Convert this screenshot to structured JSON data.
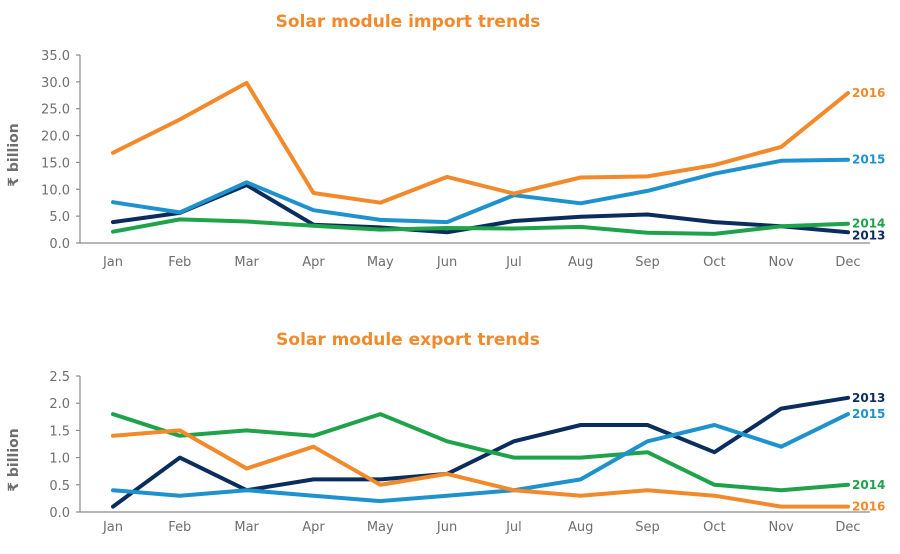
{
  "colors": {
    "c2013": "#0b2d5e",
    "c2014": "#1fa34a",
    "c2015": "#1e92cc",
    "c2016": "#f28a2c",
    "title": "#f28a2c",
    "axis": "#8a8a8a",
    "tick_text": "#6f6f6f"
  },
  "chart_data": [
    {
      "type": "line",
      "title": "Solar module import trends",
      "xlabel": "",
      "ylabel": "₹ billion",
      "ylim": [
        0,
        35
      ],
      "yticks": [
        "0.0",
        "5.0",
        "10.0",
        "15.0",
        "20.0",
        "25.0",
        "30.0",
        "35.0"
      ],
      "categories": [
        "Jan",
        "Feb",
        "Mar",
        "Apr",
        "May",
        "Jun",
        "Jul",
        "Aug",
        "Sep",
        "Oct",
        "Nov",
        "Dec"
      ],
      "series": [
        {
          "name": "2013",
          "color_key": "c2013",
          "values": [
            3.9,
            5.6,
            10.8,
            3.4,
            2.9,
            2.0,
            4.1,
            4.9,
            5.3,
            3.9,
            3.1,
            2.0
          ]
        },
        {
          "name": "2014",
          "color_key": "c2014",
          "values": [
            2.1,
            4.4,
            4.0,
            3.2,
            2.5,
            2.8,
            2.7,
            3.0,
            1.9,
            1.7,
            3.1,
            3.6
          ]
        },
        {
          "name": "2015",
          "color_key": "c2015",
          "values": [
            7.6,
            5.7,
            11.3,
            6.1,
            4.3,
            3.9,
            8.9,
            7.4,
            9.7,
            12.9,
            15.3,
            15.5
          ]
        },
        {
          "name": "2016",
          "color_key": "c2016",
          "values": [
            16.8,
            23.0,
            29.8,
            9.3,
            7.5,
            12.3,
            9.2,
            12.2,
            12.4,
            14.5,
            17.9,
            27.9
          ]
        }
      ]
    },
    {
      "type": "line",
      "title": "Solar module export trends",
      "xlabel": "",
      "ylabel": "₹ billion",
      "ylim": [
        0,
        2.5
      ],
      "yticks": [
        "0.0",
        "0.5",
        "1.0",
        "1.5",
        "2.0",
        "2.5"
      ],
      "categories": [
        "Jan",
        "Feb",
        "Mar",
        "Apr",
        "May",
        "Jun",
        "Jul",
        "Aug",
        "Sep",
        "Oct",
        "Nov",
        "Dec"
      ],
      "series": [
        {
          "name": "2013",
          "color_key": "c2013",
          "values": [
            0.1,
            1.0,
            0.4,
            0.6,
            0.6,
            0.7,
            1.3,
            1.6,
            1.6,
            1.1,
            1.9,
            2.1
          ]
        },
        {
          "name": "2014",
          "color_key": "c2014",
          "values": [
            1.8,
            1.4,
            1.5,
            1.4,
            1.8,
            1.3,
            1.0,
            1.0,
            1.1,
            0.5,
            0.4,
            0.5
          ]
        },
        {
          "name": "2015",
          "color_key": "c2015",
          "values": [
            0.4,
            0.3,
            0.4,
            0.3,
            0.2,
            0.3,
            0.4,
            0.6,
            1.3,
            1.6,
            1.2,
            1.8
          ]
        },
        {
          "name": "2016",
          "color_key": "c2016",
          "values": [
            1.4,
            1.5,
            0.8,
            1.2,
            0.5,
            0.7,
            0.4,
            0.3,
            0.4,
            0.3,
            0.1,
            0.1
          ]
        }
      ]
    }
  ]
}
